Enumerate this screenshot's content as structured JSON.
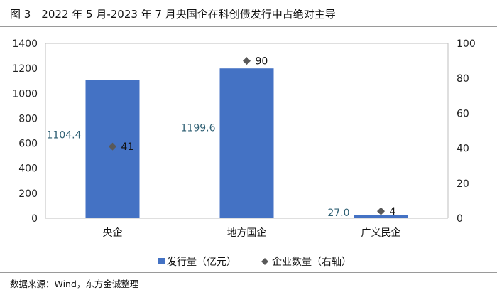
{
  "figure": {
    "title": "图 3　2022 年 5 月-2023 年 7 月央国企在科创债发行中占绝对主导",
    "source": "数据来源：Wind，东方金诚整理"
  },
  "chart_data": {
    "type": "bar",
    "categories": [
      "央企",
      "地方国企",
      "广义民企"
    ],
    "series": [
      {
        "name": "发行量（亿元）",
        "kind": "bar",
        "axis": "left",
        "values": [
          1104.4,
          1199.6,
          27.0
        ],
        "labels": [
          "1104.4",
          "1199.6",
          "27.0"
        ],
        "color": "#4472c4"
      },
      {
        "name": "企业数量（右轴）",
        "kind": "marker",
        "axis": "right",
        "values": [
          41,
          90,
          4
        ],
        "labels": [
          "41",
          "90",
          "4"
        ],
        "color": "#595959"
      }
    ],
    "left_axis": {
      "min": 0,
      "max": 1400,
      "ticks": [
        "0",
        "200",
        "400",
        "600",
        "800",
        "1000",
        "1200",
        "1400"
      ]
    },
    "right_axis": {
      "min": 0,
      "max": 100,
      "ticks": [
        "0",
        "20",
        "40",
        "60",
        "80",
        "100"
      ]
    },
    "label_color": "#2e5f73",
    "grid": false,
    "legend_position": "bottom"
  }
}
